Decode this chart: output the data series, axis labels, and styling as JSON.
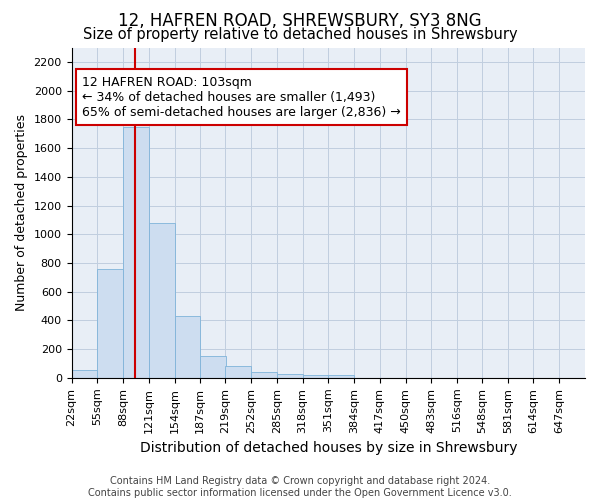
{
  "title": "12, HAFREN ROAD, SHREWSBURY, SY3 8NG",
  "subtitle": "Size of property relative to detached houses in Shrewsbury",
  "xlabel": "Distribution of detached houses by size in Shrewsbury",
  "ylabel": "Number of detached properties",
  "footnote1": "Contains HM Land Registry data © Crown copyright and database right 2024.",
  "footnote2": "Contains public sector information licensed under the Open Government Licence v3.0.",
  "annotation_line1": "12 HAFREN ROAD: 103sqm",
  "annotation_line2": "← 34% of detached houses are smaller (1,493)",
  "annotation_line3": "65% of semi-detached houses are larger (2,836) →",
  "bin_edges": [
    22,
    55,
    88,
    121,
    154,
    187,
    219,
    252,
    285,
    318,
    351,
    384,
    417,
    450,
    483,
    516,
    548,
    581,
    614,
    647,
    680
  ],
  "bar_heights": [
    55,
    760,
    1750,
    1075,
    430,
    155,
    80,
    40,
    28,
    22,
    18,
    0,
    0,
    0,
    0,
    0,
    0,
    0,
    0,
    0
  ],
  "bar_color": "#cdddf0",
  "bar_edge_color": "#7fb3d9",
  "vline_color": "#cc0000",
  "vline_x": 103,
  "annotation_box_edge_color": "#cc0000",
  "ylim": [
    0,
    2300
  ],
  "yticks": [
    0,
    200,
    400,
    600,
    800,
    1000,
    1200,
    1400,
    1600,
    1800,
    2000,
    2200
  ],
  "grid_color": "#c0cedf",
  "bg_color": "#e8eef6",
  "title_fontsize": 12,
  "subtitle_fontsize": 10.5,
  "ylabel_fontsize": 9,
  "xlabel_fontsize": 10,
  "tick_fontsize": 8,
  "annotation_fontsize": 9,
  "footnote_fontsize": 7
}
